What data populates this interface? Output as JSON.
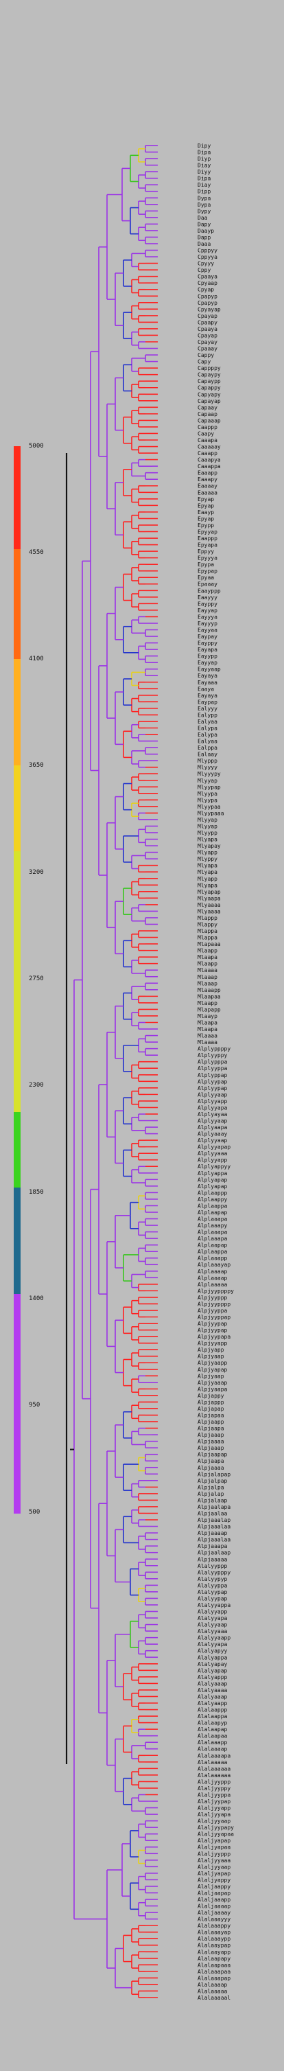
{
  "scale": {
    "ticks": [
      "5000",
      "4550",
      "4100",
      "3650",
      "3200",
      "2750",
      "2300",
      "1850",
      "1400",
      "950",
      "500"
    ],
    "colors": [
      "#ff2a1a",
      "#ff6a12",
      "#ffb020",
      "#f3d21f",
      "#d8e22b",
      "#3bd41f",
      "#1f6a8e",
      "#b43cf0"
    ]
  },
  "branch_colors": {
    "root": "#111111",
    "violet": "#9b33e6",
    "blue": "#2233cc",
    "green": "#39c61f",
    "yellow": "#e6d01c",
    "orange": "#ff8c1a",
    "red": "#ff2020"
  },
  "leaves": [
    "Dipy",
    "Dipa",
    "Diyp",
    "Diay",
    "Diyy",
    "Dipa",
    "Diay",
    "Dipp",
    "Dypa",
    "Dypa",
    "Dypy",
    "Daa",
    "Dapy",
    "Daayp",
    "Dapp",
    "Daaa",
    "Cpppyy",
    "Cppyya",
    "Cpyyy",
    "Cppy",
    "Cpaaya",
    "Cpyaap",
    "Cpyap",
    "Cpapyp",
    "Cpapyp",
    "Cpyayap",
    "Cpayap",
    "Cpaapy",
    "Cpaaya",
    "Cpayap",
    "Cpayay",
    "Cpaaay",
    "Cappy",
    "Capy",
    "Cappppy",
    "Capaypy",
    "Capaypp",
    "Capappy",
    "Capyapy",
    "Capayap",
    "Capaay",
    "Capaap",
    "Capaaap",
    "Caappp",
    "Caapy",
    "Caaapa",
    "Caaaaay",
    "Caaapp",
    "Caaapya",
    "Caaappa",
    "Eaaapp",
    "Eaaapy",
    "Eaaaay",
    "Eaaaaa",
    "Epyap",
    "Epyap",
    "Eaayp",
    "Epyap",
    "Epypp",
    "Epyyap",
    "Eaappp",
    "Epyapa",
    "Eppyy",
    "Epyyya",
    "Epypa",
    "Epypap",
    "Epyaa",
    "Epaaay",
    "Eaayppp",
    "Eaayyy",
    "Eayppy",
    "Eayyap",
    "Eayyya",
    "Eayyyp",
    "Eayyaa",
    "Eaypay",
    "Eayppy",
    "Eayapa",
    "Eayypp",
    "Eayyap",
    "Eayyaap",
    "Eayaya",
    "Eayaaa",
    "Eaaya",
    "Eayaya",
    "Eaypap",
    "Ealyyy",
    "Ealypp",
    "Ealyaa",
    "Ealypa",
    "Ealypa",
    "Ealyaa",
    "Ealppa",
    "Ealaay",
    "Mlyppp",
    "Mlyyyy",
    "Mlyyypy",
    "Mlyyap",
    "Mlyypap",
    "Mlyypa",
    "Mlyypa",
    "Mlyypaa",
    "Mlyypaaa",
    "Mlyyap",
    "Mlyyap",
    "Mlyypp",
    "Mlyapa",
    "Mlyapay",
    "Mlyapp",
    "Mlyppy",
    "Mlyapa",
    "Mlyapa",
    "Mlyapp",
    "Mlyapa",
    "Mlyapap",
    "Mlyaapa",
    "Mlyaaaa",
    "Mlyaaaa",
    "Mlappp",
    "Mlappy",
    "Mlappa",
    "Mlappa",
    "Mlapaaa",
    "Mlaapp",
    "Mlaapa",
    "Mlaapp",
    "Mlaaaa",
    "Mlaaap",
    "Mlaaap",
    "Mlaaapp",
    "Mlaapaa",
    "Mlaapp",
    "Mlapapp",
    "Mlaayp",
    "Mlaapa",
    "Mlaapa",
    "Mlaaaa",
    "Mlaaaa",
    "Alplyppppy",
    "Alplyyppy",
    "Alplypppa",
    "Alplyyppa",
    "Alplyppap",
    "Alplyypap",
    "Alplyypap",
    "Alplyyaap",
    "Alplyyapp",
    "Alplyyapa",
    "Alplyayaa",
    "Alplyyaap",
    "Alplyaapa",
    "Alplyaaay",
    "Alplyyaap",
    "Alplyyapap",
    "Alplyyaaa",
    "Alplyyapp",
    "Alplyappyy",
    "Alplyappa",
    "Alplyapap",
    "Alplyapap",
    "Alplaappp",
    "Alplaappy",
    "Alplaappa",
    "Alplaapap",
    "Alplaaapa",
    "Alplaaapy",
    "Alplaaapa",
    "Alplaaapa",
    "Alplaapap",
    "Alplaappa",
    "Alplaaapp",
    "Alplaaayap",
    "Alplaaaap",
    "Alplaaaap",
    "Alplaaaaa",
    "Alpjyyppppy",
    "Alpjyyppp",
    "Alpjyypppp",
    "Alpjyyppa",
    "Alpjyyppap",
    "Alpjyypap",
    "Alpjyypap",
    "Alpjyypapa",
    "Alpjyyapp",
    "Alpjyapp",
    "Alpjyaap",
    "Alpjyaapp",
    "Alpjyapap",
    "Alpjyaap",
    "Alpjyaaap",
    "Alpjyaapa",
    "Alpjappy",
    "Alpjappp",
    "Alpjapap",
    "Alpjapaa",
    "Alpjaapp",
    "Alpjaapa",
    "Alpjaaap",
    "Alpjaaaa",
    "Alpjaaap",
    "Alpjaapap",
    "Alpjaapa",
    "Alpjaaaa",
    "Alpjalapap",
    "Alpjalpap",
    "Alpjalpa",
    "Alpjalap",
    "Alpjalaap",
    "Alpjaalapa",
    "Alpjaalaa",
    "Alpjaaalap",
    "Alpjaaalaa",
    "Alpjaaaap",
    "Alpjaaalaa",
    "Alpjaaapa",
    "Alpjaalaap",
    "Alpjaaaaa",
    "Alalyyppp",
    "Alalyypppy",
    "Alalyypyp",
    "Alalyyppa",
    "Alalyypap",
    "Alalyypap",
    "Alalyyappa",
    "Alalyyapp",
    "Alalyyapa",
    "Alalyyaap",
    "Alalyyaaa",
    "Alalyyaapp",
    "Alalyyapa",
    "Alalyapyy",
    "Alalyappa",
    "Alalyapay",
    "Alalyapap",
    "Alalyappp",
    "Alalyaaap",
    "Alalyaaaa",
    "Alalyaaap",
    "Alalyaapp",
    "Alalaappp",
    "Alalaappa",
    "Alalaapyp",
    "Alalaapap",
    "Alalaapaa",
    "Alalaaapp",
    "Alalaaaap",
    "Alalaaaapa",
    "Alalaaaaa",
    "Alalaaaaaa",
    "Alalaaaaaa",
    "Alaljyyppp",
    "Alaljyyppy",
    "Alaljyyppa",
    "Alaljyypap",
    "Alaljyyapp",
    "Alaljyyapa",
    "Alaljyyaap",
    "Alaljyypapy",
    "Alaljyyapaa",
    "Alaljyapap",
    "Alaljyapaa",
    "Alaljyyppp",
    "Alaljyyaaa",
    "Alaljyyaap",
    "Alaljyapap",
    "Alaljyappy",
    "Alaljaappy",
    "Alaljaapap",
    "Alaljaaapp",
    "Alaljaaaap",
    "Alaljaaaay",
    "Alalaaayyy",
    "Alalaaappy",
    "Alalaaayap",
    "Alalaaaypp",
    "Alalaaypap",
    "Alalaayapp",
    "Alalaapapy",
    "Alalaapaaa",
    "Alalaaapaa",
    "Alalaaapap",
    "Alalaaaap",
    "Alalaaaaa",
    "Alalaaaaal"
  ]
}
